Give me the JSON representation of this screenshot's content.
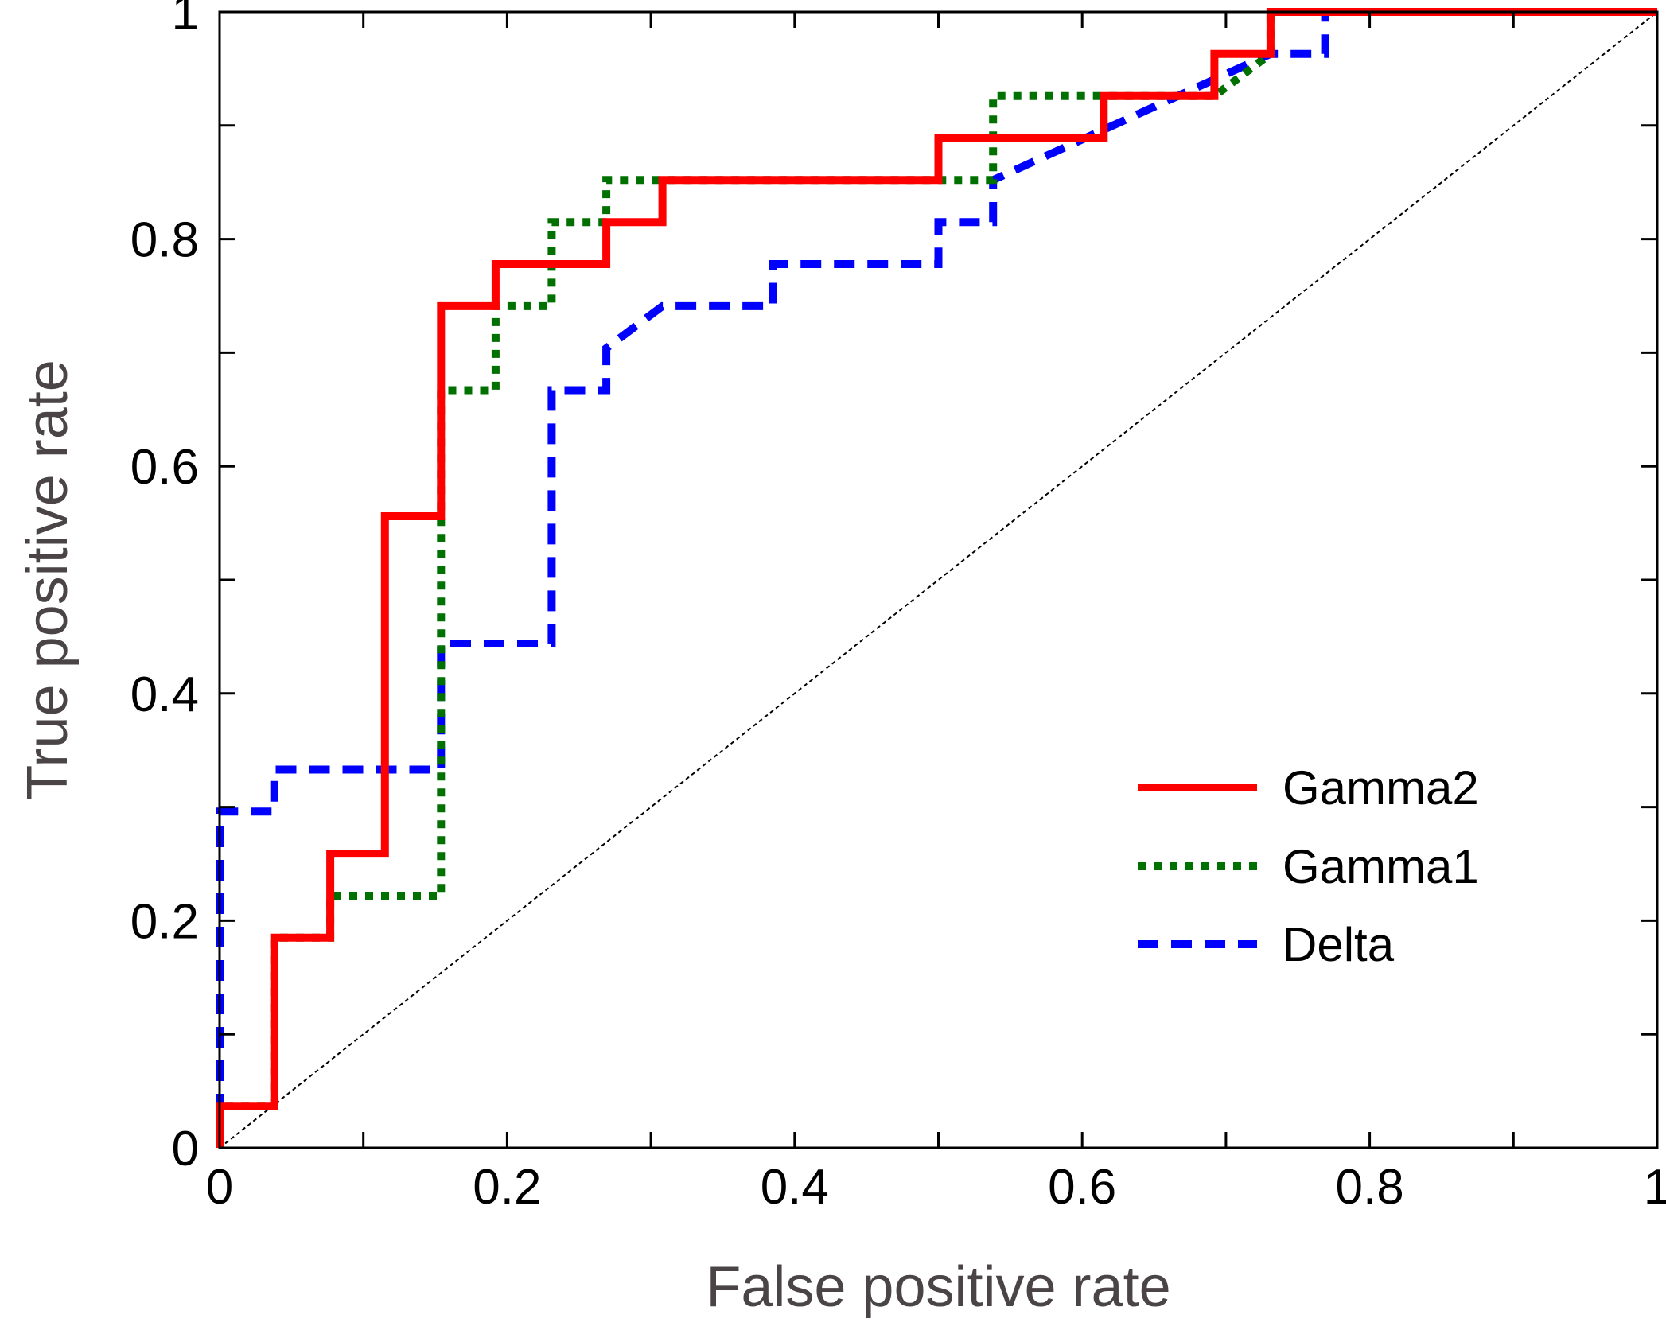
{
  "chart_data": {
    "type": "line",
    "title": "",
    "xlabel": "False positive rate",
    "ylabel": "True positive rate",
    "xlim": [
      0,
      1
    ],
    "ylim": [
      0,
      1
    ],
    "x_ticks": [
      0,
      0.2,
      0.4,
      0.6,
      0.8,
      1
    ],
    "x_tick_labels": [
      "0",
      "0.2",
      "0.4",
      "0.6",
      "0.8",
      "1"
    ],
    "y_ticks": [
      0,
      0.2,
      0.4,
      0.6,
      0.8,
      1
    ],
    "y_tick_labels": [
      "0",
      "0.2",
      "0.4",
      "0.6",
      "0.8",
      "1"
    ],
    "minor_tick_step": 0.1,
    "grid": false,
    "legend_position": "bottom-right",
    "reference_line": {
      "x": [
        0,
        1
      ],
      "y": [
        0,
        1
      ],
      "style": "dotted",
      "color": "#000000"
    },
    "series": [
      {
        "name": "Gamma2",
        "color": "#ff0000",
        "style": "solid",
        "x": [
          0,
          0,
          0.038,
          0.038,
          0.077,
          0.077,
          0.115,
          0.115,
          0.154,
          0.154,
          0.192,
          0.192,
          0.269,
          0.269,
          0.308,
          0.308,
          0.5,
          0.5,
          0.615,
          0.615,
          0.692,
          0.692,
          0.731,
          0.731,
          1
        ],
        "y": [
          0,
          0.037,
          0.037,
          0.185,
          0.185,
          0.259,
          0.259,
          0.556,
          0.556,
          0.741,
          0.741,
          0.778,
          0.778,
          0.815,
          0.815,
          0.852,
          0.852,
          0.889,
          0.889,
          0.926,
          0.926,
          0.963,
          0.963,
          1,
          1
        ]
      },
      {
        "name": "Gamma1",
        "color": "#007000",
        "style": "dotted",
        "x": [
          0,
          0,
          0.038,
          0.038,
          0.077,
          0.077,
          0.154,
          0.154,
          0.192,
          0.192,
          0.231,
          0.231,
          0.269,
          0.269,
          0.538,
          0.538,
          0.692,
          0.731,
          0.731,
          1
        ],
        "y": [
          0,
          0.037,
          0.037,
          0.185,
          0.185,
          0.222,
          0.222,
          0.667,
          0.667,
          0.741,
          0.741,
          0.815,
          0.815,
          0.852,
          0.852,
          0.926,
          0.926,
          0.963,
          1,
          1
        ]
      },
      {
        "name": "Delta",
        "color": "#0000ff",
        "style": "dashed",
        "x": [
          0,
          0,
          0.038,
          0.038,
          0.154,
          0.154,
          0.231,
          0.231,
          0.269,
          0.269,
          0.308,
          0.385,
          0.385,
          0.5,
          0.5,
          0.538,
          0.538,
          0.731,
          0.769,
          0.769
        ],
        "y": [
          0,
          0.296,
          0.296,
          0.333,
          0.333,
          0.444,
          0.444,
          0.667,
          0.667,
          0.704,
          0.741,
          0.741,
          0.778,
          0.778,
          0.815,
          0.815,
          0.852,
          0.963,
          0.963,
          1
        ]
      }
    ]
  }
}
